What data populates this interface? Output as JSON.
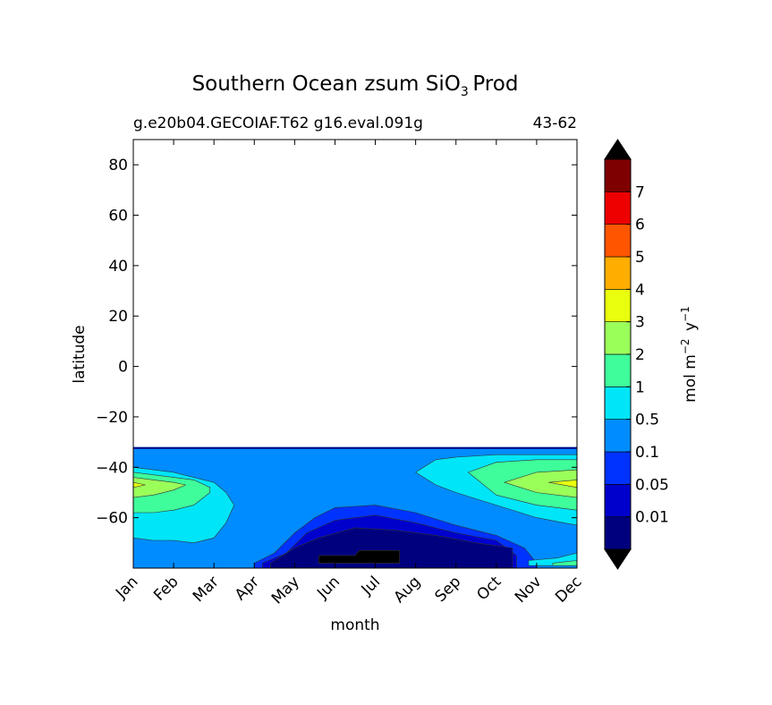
{
  "chart_data": {
    "type": "heatmap",
    "title": "Southern Ocean zsum SiO",
    "title_subscript": "3",
    "title_suffix": "Prod",
    "subtitle_left": "g.e20b04.GECOIAF.T62 g16.eval.091g",
    "subtitle_right": "43-62",
    "xlabel": "month",
    "ylabel": "latitude",
    "x_categories": [
      "Jan",
      "Feb",
      "Mar",
      "Apr",
      "May",
      "Jun",
      "Jul",
      "Aug",
      "Sep",
      "Oct",
      "Nov",
      "Dec"
    ],
    "ylim": [
      -80,
      90
    ],
    "y_ticks": [
      80,
      60,
      40,
      20,
      0,
      -20,
      -40,
      -60
    ],
    "y_tick_labels": [
      "80",
      "60",
      "40",
      "20",
      "0",
      "−20",
      "−40",
      "−60"
    ],
    "data_extent_lat": [
      -80,
      -32
    ],
    "colorbar": {
      "label_main": "mol m",
      "label_exp1": "−2",
      "label_mid": "y",
      "label_exp2": "−1",
      "levels": [
        "0.01",
        "0.05",
        "0.1",
        "0.5",
        "1",
        "2",
        "3",
        "4",
        "5",
        "6",
        "7"
      ],
      "colors": [
        "#00007f",
        "#0000cc",
        "#0033ff",
        "#008cff",
        "#00e5f8",
        "#3ffd9b",
        "#9bff5a",
        "#e9ff0e",
        "#ffae00",
        "#ff5500",
        "#ee0000",
        "#7f0000"
      ],
      "extend_min_color": "#000000",
      "extend_max_color": "#000000"
    },
    "fields": [
      {
        "level": "0.1",
        "color": "#008cff",
        "bounds": [
          [
            1,
            -32
          ],
          [
            1,
            -32
          ],
          [
            1,
            -32
          ],
          [
            1,
            -32
          ],
          [
            1,
            -32
          ],
          [
            1,
            -32
          ],
          [
            1,
            -32
          ],
          [
            1,
            -32
          ],
          [
            1,
            -32
          ],
          [
            1,
            -32
          ],
          [
            1,
            -32
          ],
          [
            1,
            -32
          ]
        ]
      },
      {
        "level": "0.5",
        "color": "#00e5f8",
        "band": [
          {
            "x": 1.0,
            "top": -40,
            "bot": -68
          },
          {
            "x": 1.5,
            "top": -41,
            "bot": -69
          },
          {
            "x": 2.0,
            "top": -42,
            "bot": -69
          },
          {
            "x": 2.5,
            "top": -44,
            "bot": -70
          },
          {
            "x": 3.0,
            "top": -46,
            "bot": -68
          },
          {
            "x": 3.3,
            "top": -50,
            "bot": -62
          },
          {
            "x": 3.5,
            "top": -55,
            "bot": -55
          }
        ]
      },
      {
        "level": "0.5b",
        "color": "#00e5f8",
        "band": [
          {
            "x": 8.0,
            "top": -42,
            "bot": -42
          },
          {
            "x": 8.5,
            "top": -37,
            "bot": -47
          },
          {
            "x": 9.0,
            "top": -36,
            "bot": -50
          },
          {
            "x": 10.0,
            "top": -35,
            "bot": -55
          },
          {
            "x": 11.0,
            "top": -35,
            "bot": -60
          },
          {
            "x": 12.0,
            "top": -35,
            "bot": -63
          }
        ]
      },
      {
        "level": "1",
        "color": "#3ffd9b",
        "band": [
          {
            "x": 1.0,
            "top": -42,
            "bot": -58
          },
          {
            "x": 1.5,
            "top": -43,
            "bot": -58
          },
          {
            "x": 2.0,
            "top": -44,
            "bot": -57
          },
          {
            "x": 2.5,
            "top": -45,
            "bot": -55
          },
          {
            "x": 2.9,
            "top": -48,
            "bot": -50
          }
        ]
      },
      {
        "level": "1b",
        "color": "#3ffd9b",
        "band": [
          {
            "x": 9.3,
            "top": -42,
            "bot": -42
          },
          {
            "x": 10.0,
            "top": -38,
            "bot": -51
          },
          {
            "x": 11.0,
            "top": -37,
            "bot": -55
          },
          {
            "x": 12.0,
            "top": -37,
            "bot": -57
          }
        ]
      },
      {
        "level": "2",
        "color": "#9bff5a",
        "band": [
          {
            "x": 1.0,
            "top": -44,
            "bot": -52
          },
          {
            "x": 1.5,
            "top": -45,
            "bot": -51
          },
          {
            "x": 2.0,
            "top": -46,
            "bot": -49
          },
          {
            "x": 2.3,
            "top": -47,
            "bot": -47
          }
        ]
      },
      {
        "level": "2b",
        "color": "#9bff5a",
        "band": [
          {
            "x": 10.2,
            "top": -46,
            "bot": -46
          },
          {
            "x": 11.0,
            "top": -42,
            "bot": -50
          },
          {
            "x": 12.0,
            "top": -41,
            "bot": -52
          }
        ]
      },
      {
        "level": "3",
        "color": "#e9ff0e",
        "band": [
          {
            "x": 1.0,
            "top": -46,
            "bot": -48
          },
          {
            "x": 1.3,
            "top": -47,
            "bot": -47
          }
        ]
      },
      {
        "level": "3b",
        "color": "#e9ff0e",
        "band": [
          {
            "x": 11.3,
            "top": -46,
            "bot": -46
          },
          {
            "x": 12.0,
            "top": -45,
            "bot": -48
          }
        ]
      },
      {
        "level": "0.05",
        "color": "#0033ff",
        "band": [
          {
            "x": 4.0,
            "top": -78,
            "bot": -80
          },
          {
            "x": 4.5,
            "top": -74,
            "bot": -80
          },
          {
            "x": 5.0,
            "top": -66,
            "bot": -80
          },
          {
            "x": 5.5,
            "top": -60,
            "bot": -80
          },
          {
            "x": 6.0,
            "top": -56,
            "bot": -80
          },
          {
            "x": 7.0,
            "top": -55,
            "bot": -80
          },
          {
            "x": 8.0,
            "top": -58,
            "bot": -80
          },
          {
            "x": 9.0,
            "top": -63,
            "bot": -80
          },
          {
            "x": 10.0,
            "top": -67,
            "bot": -80
          },
          {
            "x": 10.7,
            "top": -72,
            "bot": -80
          },
          {
            "x": 11.0,
            "top": -78,
            "bot": -80
          }
        ]
      },
      {
        "level": "0.01",
        "color": "#0000cc",
        "band": [
          {
            "x": 4.2,
            "top": -78,
            "bot": -80
          },
          {
            "x": 4.8,
            "top": -74,
            "bot": -80
          },
          {
            "x": 5.3,
            "top": -66,
            "bot": -80
          },
          {
            "x": 6.0,
            "top": -61,
            "bot": -80
          },
          {
            "x": 7.0,
            "top": -59,
            "bot": -80
          },
          {
            "x": 8.0,
            "top": -62,
            "bot": -80
          },
          {
            "x": 9.0,
            "top": -66,
            "bot": -80
          },
          {
            "x": 10.0,
            "top": -69,
            "bot": -80
          },
          {
            "x": 10.5,
            "top": -75,
            "bot": -80
          }
        ]
      },
      {
        "level": "min",
        "color": "#00007f",
        "band": [
          {
            "x": 4.4,
            "top": -78,
            "bot": -80
          },
          {
            "x": 5.0,
            "top": -72,
            "bot": -80
          },
          {
            "x": 5.6,
            "top": -68,
            "bot": -80
          },
          {
            "x": 6.5,
            "top": -64,
            "bot": -80
          },
          {
            "x": 7.5,
            "top": -65,
            "bot": -80
          },
          {
            "x": 8.5,
            "top": -67,
            "bot": -80
          },
          {
            "x": 9.5,
            "top": -70,
            "bot": -80
          },
          {
            "x": 10.4,
            "top": -72,
            "bot": -80
          }
        ]
      },
      {
        "level": "extend_min",
        "color": "#000000",
        "band": [
          {
            "x": 5.6,
            "top": -75,
            "bot": -78
          },
          {
            "x": 6.5,
            "top": -75,
            "bot": -78
          },
          {
            "x": 6.6,
            "top": -73,
            "bot": -78
          },
          {
            "x": 7.6,
            "top": -73,
            "bot": -78
          }
        ]
      },
      {
        "level": "edge1",
        "color": "#00e5f8",
        "band": [
          {
            "x": 10.8,
            "top": -77,
            "bot": -79
          },
          {
            "x": 11.5,
            "top": -76,
            "bot": -79
          },
          {
            "x": 12.0,
            "top": -74,
            "bot": -79
          }
        ]
      },
      {
        "level": "edge2",
        "color": "#3ffd9b",
        "band": [
          {
            "x": 11.4,
            "top": -78,
            "bot": -79
          },
          {
            "x": 12.0,
            "top": -77,
            "bot": -79
          }
        ]
      }
    ]
  }
}
